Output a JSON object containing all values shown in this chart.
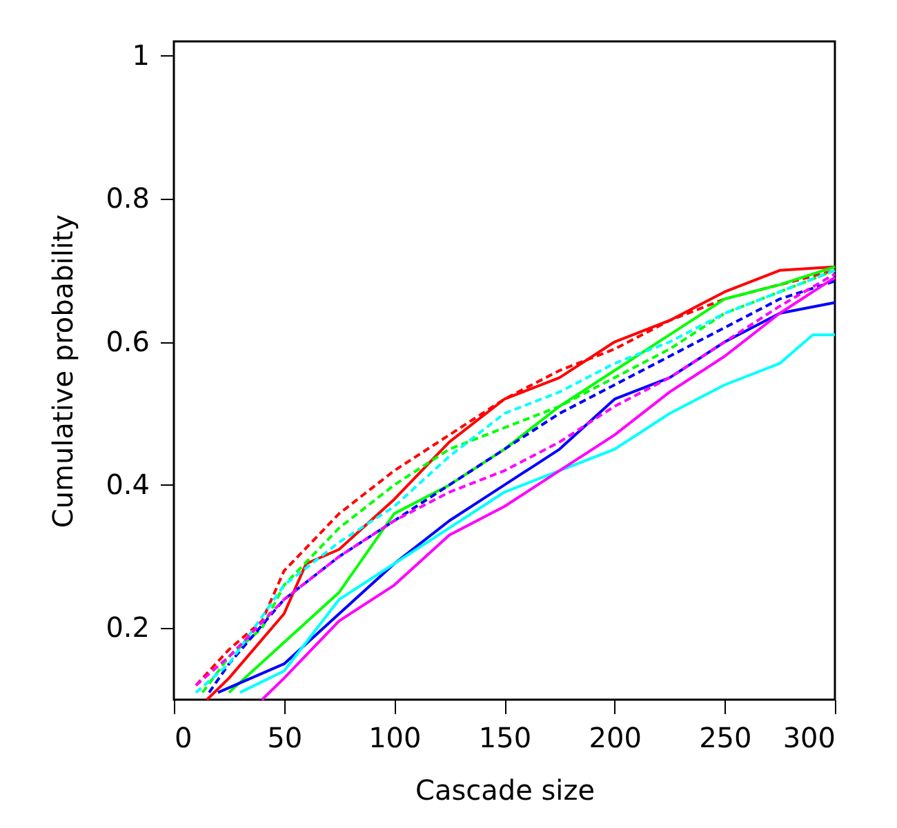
{
  "chart_data": {
    "type": "line",
    "xlabel": "Cascade size",
    "ylabel": "Cumulative probability",
    "xlim": [
      0,
      300
    ],
    "xticks": [
      0,
      50,
      100,
      150,
      200,
      250,
      300
    ],
    "ylim": [
      0.1,
      1.02
    ],
    "yticks": [
      0.2,
      0.4,
      0.6,
      0.8,
      1
    ],
    "grid": false,
    "marker": "none",
    "series": [
      {
        "color": "#ff0000",
        "line_style": "solid",
        "x": [
          15,
          25,
          50,
          60,
          75,
          100,
          125,
          150,
          175,
          200,
          225,
          250,
          275,
          300
        ],
        "values": [
          0.1,
          0.13,
          0.22,
          0.29,
          0.31,
          0.38,
          0.46,
          0.52,
          0.55,
          0.6,
          0.63,
          0.67,
          0.7,
          0.705
        ]
      },
      {
        "color": "#ff0000",
        "line_style": "dashed",
        "x": [
          10,
          25,
          40,
          50,
          75,
          100,
          125,
          150,
          175,
          200,
          225,
          250,
          275,
          300
        ],
        "values": [
          0.12,
          0.17,
          0.21,
          0.28,
          0.36,
          0.42,
          0.47,
          0.52,
          0.56,
          0.59,
          0.63,
          0.66,
          0.68,
          0.7
        ]
      },
      {
        "color": "#00ff00",
        "line_style": "solid",
        "x": [
          25,
          50,
          75,
          100,
          125,
          150,
          175,
          200,
          225,
          250,
          275,
          300
        ],
        "values": [
          0.11,
          0.18,
          0.25,
          0.36,
          0.4,
          0.45,
          0.51,
          0.56,
          0.61,
          0.66,
          0.68,
          0.705
        ]
      },
      {
        "color": "#00ff00",
        "line_style": "dashed",
        "x": [
          13,
          25,
          40,
          50,
          75,
          100,
          125,
          150,
          175,
          200,
          225,
          250,
          275,
          300
        ],
        "values": [
          0.11,
          0.16,
          0.2,
          0.26,
          0.34,
          0.4,
          0.45,
          0.48,
          0.51,
          0.55,
          0.59,
          0.64,
          0.67,
          0.7
        ]
      },
      {
        "color": "#0000ff",
        "line_style": "solid",
        "x": [
          20,
          50,
          75,
          100,
          125,
          150,
          175,
          200,
          225,
          250,
          275,
          300
        ],
        "values": [
          0.11,
          0.15,
          0.22,
          0.29,
          0.35,
          0.4,
          0.45,
          0.52,
          0.55,
          0.6,
          0.64,
          0.655
        ]
      },
      {
        "color": "#0000ff",
        "line_style": "dashed",
        "x": [
          16,
          25,
          50,
          75,
          100,
          125,
          150,
          175,
          200,
          225,
          250,
          275,
          300
        ],
        "values": [
          0.11,
          0.15,
          0.24,
          0.3,
          0.35,
          0.4,
          0.45,
          0.5,
          0.54,
          0.58,
          0.62,
          0.66,
          0.685
        ]
      },
      {
        "color": "#00ffff",
        "line_style": "solid",
        "x": [
          30,
          50,
          75,
          100,
          125,
          150,
          175,
          200,
          225,
          250,
          275,
          290,
          300
        ],
        "values": [
          0.11,
          0.14,
          0.24,
          0.29,
          0.34,
          0.39,
          0.42,
          0.45,
          0.5,
          0.54,
          0.57,
          0.61,
          0.61
        ]
      },
      {
        "color": "#00ffff",
        "line_style": "dashed",
        "x": [
          10,
          25,
          50,
          75,
          100,
          125,
          150,
          175,
          200,
          225,
          250,
          275,
          300
        ],
        "values": [
          0.11,
          0.15,
          0.26,
          0.32,
          0.37,
          0.44,
          0.5,
          0.53,
          0.57,
          0.6,
          0.64,
          0.67,
          0.7
        ]
      },
      {
        "color": "#ff00ff",
        "line_style": "solid",
        "x": [
          40,
          50,
          75,
          100,
          125,
          150,
          175,
          200,
          225,
          250,
          275,
          300
        ],
        "values": [
          0.1,
          0.13,
          0.21,
          0.26,
          0.33,
          0.37,
          0.42,
          0.47,
          0.53,
          0.58,
          0.64,
          0.69
        ]
      },
      {
        "color": "#ff00ff",
        "line_style": "dashed",
        "x": [
          10,
          25,
          50,
          75,
          100,
          125,
          150,
          175,
          200,
          225,
          250,
          275,
          300
        ],
        "values": [
          0.12,
          0.16,
          0.24,
          0.3,
          0.35,
          0.39,
          0.42,
          0.46,
          0.51,
          0.55,
          0.6,
          0.65,
          0.695
        ]
      }
    ]
  }
}
